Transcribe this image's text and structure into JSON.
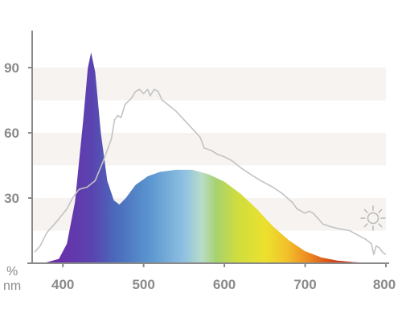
{
  "chart_data": {
    "type": "area",
    "xlim": [
      362,
      800
    ],
    "ylim": [
      0,
      110
    ],
    "x_ticks": [
      400,
      500,
      600,
      700,
      800
    ],
    "x_tick_labels": [
      "400",
      "500",
      "600",
      "700",
      "800"
    ],
    "y_ticks": [
      30,
      60,
      90
    ],
    "y_tick_labels": [
      "30",
      "60",
      "90"
    ],
    "y_unit": "%",
    "x_unit": "nm",
    "banded_background": true,
    "band_color": "#f6f3f1",
    "axis_color": "#8a8a8a",
    "series": [
      {
        "kind": "led-spectrum",
        "fill": "visible-spectrum-gradient",
        "points": [
          [
            362,
            0
          ],
          [
            380,
            0.4
          ],
          [
            395,
            2
          ],
          [
            405,
            9
          ],
          [
            415,
            28
          ],
          [
            425,
            65
          ],
          [
            431,
            90
          ],
          [
            435,
            97
          ],
          [
            440,
            88
          ],
          [
            447,
            60
          ],
          [
            455,
            38
          ],
          [
            463,
            29
          ],
          [
            470,
            27
          ],
          [
            478,
            30
          ],
          [
            490,
            36
          ],
          [
            505,
            40
          ],
          [
            520,
            42
          ],
          [
            540,
            43
          ],
          [
            560,
            43
          ],
          [
            580,
            41
          ],
          [
            600,
            37.5
          ],
          [
            620,
            32
          ],
          [
            640,
            25
          ],
          [
            660,
            17
          ],
          [
            680,
            10.5
          ],
          [
            700,
            5.5
          ],
          [
            720,
            2.7
          ],
          [
            740,
            1.2
          ],
          [
            760,
            0.5
          ],
          [
            780,
            0.2
          ],
          [
            800,
            0
          ]
        ]
      },
      {
        "kind": "daylight-reference",
        "color": "#c3c3c3",
        "points": [
          [
            365,
            5
          ],
          [
            372,
            8
          ],
          [
            380,
            14
          ],
          [
            392,
            19
          ],
          [
            405,
            25
          ],
          [
            412,
            30
          ],
          [
            420,
            34
          ],
          [
            430,
            35
          ],
          [
            440,
            38
          ],
          [
            450,
            47
          ],
          [
            460,
            57
          ],
          [
            464,
            66
          ],
          [
            468,
            68
          ],
          [
            472,
            67
          ],
          [
            477,
            73
          ],
          [
            485,
            76
          ],
          [
            490,
            79
          ],
          [
            495,
            80
          ],
          [
            500,
            78
          ],
          [
            505,
            80
          ],
          [
            508,
            77
          ],
          [
            513,
            80
          ],
          [
            518,
            79
          ],
          [
            523,
            75
          ],
          [
            530,
            73
          ],
          [
            540,
            70
          ],
          [
            550,
            66
          ],
          [
            560,
            62
          ],
          [
            570,
            58
          ],
          [
            575,
            53
          ],
          [
            583,
            52
          ],
          [
            592,
            50
          ],
          [
            600,
            49
          ],
          [
            610,
            47
          ],
          [
            620,
            44
          ],
          [
            632,
            41
          ],
          [
            645,
            38
          ],
          [
            660,
            35
          ],
          [
            672,
            32
          ],
          [
            684,
            28
          ],
          [
            690,
            25
          ],
          [
            695,
            24
          ],
          [
            700,
            23
          ],
          [
            705,
            24
          ],
          [
            710,
            23
          ],
          [
            715,
            21
          ],
          [
            722,
            18
          ],
          [
            730,
            17
          ],
          [
            740,
            16
          ],
          [
            755,
            15
          ],
          [
            765,
            13
          ],
          [
            775,
            11
          ],
          [
            782,
            9
          ],
          [
            785,
            4
          ],
          [
            788,
            8
          ],
          [
            792,
            7
          ],
          [
            796,
            5
          ],
          [
            800,
            4
          ]
        ]
      }
    ],
    "legend_icon": "sun-icon"
  }
}
